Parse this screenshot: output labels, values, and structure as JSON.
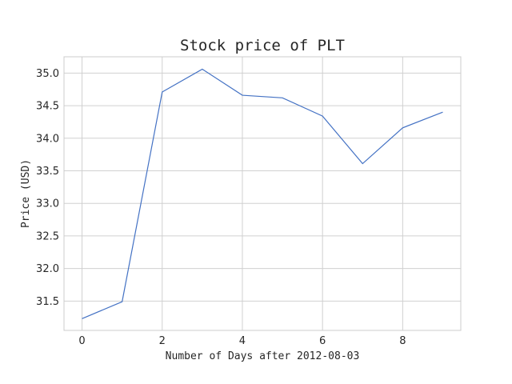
{
  "chart_data": {
    "type": "line",
    "title": "Stock price of PLT",
    "xlabel": "Number of Days after 2012-08-03",
    "ylabel": "Price (USD)",
    "x": [
      0,
      1,
      2,
      3,
      4,
      5,
      6,
      7,
      8,
      9
    ],
    "series": [
      {
        "values": [
          31.23,
          31.49,
          34.71,
          35.06,
          34.66,
          34.62,
          34.34,
          33.61,
          34.16,
          34.4
        ],
        "color": "#4472c4"
      }
    ],
    "xlim": [
      -0.45,
      9.45
    ],
    "ylim": [
      31.05,
      35.25
    ],
    "xticks": [
      0,
      2,
      4,
      6,
      8
    ],
    "yticks": [
      31.5,
      32.0,
      32.5,
      33.0,
      33.5,
      34.0,
      34.5,
      35.0
    ],
    "ytick_labels": [
      "31.5",
      "32.0",
      "32.5",
      "33.0",
      "33.5",
      "34.0",
      "34.5",
      "35.0"
    ],
    "grid": true
  }
}
